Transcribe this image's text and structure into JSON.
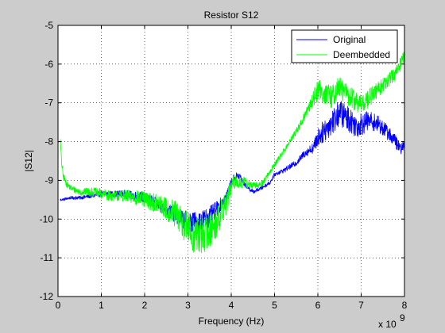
{
  "chart_data": {
    "type": "line",
    "title": "Resistor S12",
    "xlabel": "Frequency (Hz)",
    "ylabel": "|S12|",
    "x_multiplier_label": "x 10",
    "x_multiplier_exponent": "9",
    "xlim": [
      0,
      8
    ],
    "ylim": [
      -12,
      -5
    ],
    "x_ticks": [
      "0",
      "1",
      "2",
      "3",
      "4",
      "5",
      "6",
      "7",
      "8"
    ],
    "y_ticks": [
      "-12",
      "-11",
      "-10",
      "-9",
      "-8",
      "-7",
      "-6",
      "-5"
    ],
    "grid": true,
    "legend_position": "top-right",
    "x_scale_factor": 1000000000.0,
    "series": [
      {
        "name": "Original",
        "color": "#0000ff",
        "x": [
          0.05,
          0.1,
          0.3,
          0.5,
          0.8,
          1.0,
          1.2,
          1.5,
          1.8,
          2.0,
          2.2,
          2.5,
          2.8,
          3.0,
          3.2,
          3.5,
          3.7,
          3.9,
          4.0,
          4.1,
          4.2,
          4.3,
          4.5,
          4.7,
          4.9,
          5.0,
          5.2,
          5.5,
          5.7,
          5.9,
          6.0,
          6.2,
          6.4,
          6.5,
          6.7,
          6.9,
          7.0,
          7.2,
          7.4,
          7.6,
          7.8,
          7.9,
          8.0
        ],
        "y": [
          -9.5,
          -9.5,
          -9.45,
          -9.45,
          -9.4,
          -9.35,
          -9.35,
          -9.35,
          -9.4,
          -9.45,
          -9.55,
          -9.75,
          -9.95,
          -10.1,
          -10.1,
          -9.95,
          -9.7,
          -9.4,
          -9.05,
          -8.9,
          -8.9,
          -9.1,
          -9.3,
          -9.2,
          -9.05,
          -8.85,
          -8.75,
          -8.55,
          -8.3,
          -8.15,
          -7.9,
          -7.65,
          -7.4,
          -7.25,
          -7.4,
          -7.6,
          -7.55,
          -7.45,
          -7.55,
          -7.75,
          -8.0,
          -8.2,
          -8.1
        ],
        "noise": [
          0.02,
          0.03,
          0.04,
          0.05,
          0.06,
          0.08,
          0.08,
          0.1,
          0.12,
          0.14,
          0.15,
          0.18,
          0.22,
          0.3,
          0.3,
          0.28,
          0.2,
          0.12,
          0.12,
          0.12,
          0.1,
          0.06,
          0.05,
          0.05,
          0.05,
          0.05,
          0.06,
          0.08,
          0.1,
          0.15,
          0.25,
          0.32,
          0.35,
          0.35,
          0.35,
          0.3,
          0.3,
          0.25,
          0.22,
          0.2,
          0.18,
          0.15,
          0.12
        ]
      },
      {
        "name": "Deembedded",
        "color": "#00ff00",
        "x": [
          0.05,
          0.08,
          0.12,
          0.2,
          0.3,
          0.5,
          0.8,
          1.0,
          1.2,
          1.5,
          1.8,
          2.0,
          2.3,
          2.6,
          2.9,
          3.1,
          3.3,
          3.6,
          3.9,
          4.0,
          4.1,
          4.3,
          4.5,
          4.7,
          5.0,
          5.3,
          5.6,
          5.8,
          6.0,
          6.3,
          6.5,
          6.8,
          7.0,
          7.2,
          7.5,
          7.8,
          8.0
        ],
        "y": [
          -7.9,
          -8.5,
          -8.9,
          -9.1,
          -9.2,
          -9.3,
          -9.3,
          -9.35,
          -9.4,
          -9.4,
          -9.45,
          -9.5,
          -9.6,
          -9.8,
          -10.1,
          -10.4,
          -10.45,
          -10.2,
          -9.55,
          -9.15,
          -9.05,
          -9.05,
          -9.15,
          -9.1,
          -8.6,
          -8.1,
          -7.55,
          -7.1,
          -6.65,
          -6.85,
          -6.6,
          -6.9,
          -7.05,
          -6.85,
          -6.55,
          -6.25,
          -5.8
        ],
        "noise": [
          0.05,
          0.1,
          0.1,
          0.08,
          0.08,
          0.1,
          0.12,
          0.14,
          0.14,
          0.15,
          0.2,
          0.22,
          0.25,
          0.35,
          0.45,
          0.5,
          0.5,
          0.45,
          0.3,
          0.25,
          0.2,
          0.15,
          0.1,
          0.08,
          0.08,
          0.08,
          0.1,
          0.15,
          0.3,
          0.3,
          0.3,
          0.28,
          0.25,
          0.25,
          0.2,
          0.18,
          0.2
        ]
      }
    ]
  }
}
